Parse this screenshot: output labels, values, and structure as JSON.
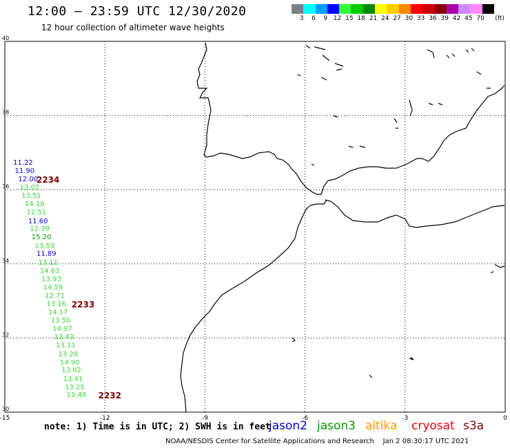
{
  "header": {
    "title": "12:00 – 23:59 UTC 12/30/2020",
    "subtitle": "12 hour collection of altimeter wave heights"
  },
  "legend": {
    "unit": "(ft)",
    "bins": [
      {
        "label": "3",
        "color": "#808080"
      },
      {
        "label": "6",
        "color": "#00ffff"
      },
      {
        "label": "9",
        "color": "#00a0ff"
      },
      {
        "label": "12",
        "color": "#0000ff"
      },
      {
        "label": "15",
        "color": "#33ff33"
      },
      {
        "label": "18",
        "color": "#00cc00"
      },
      {
        "label": "21",
        "color": "#008800"
      },
      {
        "label": "24",
        "color": "#ffff00"
      },
      {
        "label": "27",
        "color": "#ffcc00"
      },
      {
        "label": "30",
        "color": "#ff8800"
      },
      {
        "label": "33",
        "color": "#ff0000"
      },
      {
        "label": "36",
        "color": "#cc0000"
      },
      {
        "label": "39",
        "color": "#880000"
      },
      {
        "label": "42",
        "color": "#aa00aa"
      },
      {
        "label": "45",
        "color": "#cc88ff"
      },
      {
        "label": "70",
        "color": "#ff88ff"
      },
      {
        "label": "",
        "color": "#000000"
      }
    ]
  },
  "map": {
    "lon_range": [
      -15,
      0
    ],
    "lat_range": [
      30,
      40
    ],
    "lon_ticks": [
      "-15",
      "-12",
      "-9",
      "-6",
      "-3",
      "0"
    ],
    "lat_ticks": [
      "40",
      "38",
      "36",
      "34",
      "32",
      "30"
    ]
  },
  "tracks": [
    {
      "color": "#0000cc",
      "points": [
        {
          "v": "11.22",
          "lon": -14.75,
          "lat": 36.7
        },
        {
          "v": "11.90",
          "lon": -14.7,
          "lat": 36.47
        },
        {
          "v": "12.00",
          "lon": -14.6,
          "lat": 36.25
        }
      ]
    },
    {
      "color": "#33dd33",
      "points": [
        {
          "v": "13.02",
          "lon": -14.55,
          "lat": 36.02
        },
        {
          "v": "13.51",
          "lon": -14.5,
          "lat": 35.8
        },
        {
          "v": "14.10",
          "lon": -14.4,
          "lat": 35.57
        },
        {
          "v": "12.51",
          "lon": -14.35,
          "lat": 35.35
        }
      ]
    },
    {
      "color": "#0000cc",
      "points": [
        {
          "v": "11.60",
          "lon": -14.3,
          "lat": 35.12
        }
      ]
    },
    {
      "color": "#33dd33",
      "points": [
        {
          "v": "12.39",
          "lon": -14.25,
          "lat": 34.9
        }
      ]
    },
    {
      "color": "#009900",
      "points": [
        {
          "v": "15.20",
          "lon": -14.2,
          "lat": 34.68
        }
      ]
    },
    {
      "color": "#33dd33",
      "points": [
        {
          "v": "13.53",
          "lon": -14.1,
          "lat": 34.45
        }
      ]
    },
    {
      "color": "#0000cc",
      "points": [
        {
          "v": "11.89",
          "lon": -14.05,
          "lat": 34.23
        }
      ]
    },
    {
      "color": "#33dd33",
      "points": [
        {
          "v": "13.11",
          "lon": -14.0,
          "lat": 34.0
        },
        {
          "v": "14.63",
          "lon": -13.95,
          "lat": 33.78
        },
        {
          "v": "13.93",
          "lon": -13.9,
          "lat": 33.55
        },
        {
          "v": "14.59",
          "lon": -13.85,
          "lat": 33.33
        },
        {
          "v": "12.71",
          "lon": -13.8,
          "lat": 33.1
        },
        {
          "v": "13.16",
          "lon": -13.75,
          "lat": 32.88
        },
        {
          "v": "14.17",
          "lon": -13.7,
          "lat": 32.66
        },
        {
          "v": "13.50",
          "lon": -13.62,
          "lat": 32.43
        },
        {
          "v": "14.97",
          "lon": -13.57,
          "lat": 32.21
        },
        {
          "v": "13.43",
          "lon": -13.52,
          "lat": 31.98
        },
        {
          "v": "13.11",
          "lon": -13.47,
          "lat": 31.76
        },
        {
          "v": "13.29",
          "lon": -13.4,
          "lat": 31.53
        },
        {
          "v": "14.90",
          "lon": -13.35,
          "lat": 31.31
        },
        {
          "v": "13.02",
          "lon": -13.3,
          "lat": 31.09
        },
        {
          "v": "13.41",
          "lon": -13.25,
          "lat": 30.86
        },
        {
          "v": "13.25",
          "lon": -13.2,
          "lat": 30.64
        },
        {
          "v": "13.48",
          "lon": -13.15,
          "lat": 30.42
        }
      ]
    }
  ],
  "time_labels": [
    {
      "text": "2234",
      "lon": -14.05,
      "lat": 36.25
    },
    {
      "text": "2233",
      "lon": -13.0,
      "lat": 32.88
    },
    {
      "text": "2232",
      "lon": -12.2,
      "lat": 30.42
    }
  ],
  "footer": {
    "note": "note: 1) Time is in UTC; 2) SWH is in feet",
    "satellites": [
      {
        "name": "jason2",
        "color": "#0000cc"
      },
      {
        "name": "jason3",
        "color": "#009900"
      },
      {
        "name": "altika",
        "color": "#ff9900"
      },
      {
        "name": "cryosat",
        "color": "#ee0000"
      },
      {
        "name": "s3a",
        "color": "#880000"
      }
    ],
    "credit": "NOAA/NESDIS Center for Satellite Applications and Research",
    "generated": "Jan  2 08:30:17 UTC 2021"
  }
}
